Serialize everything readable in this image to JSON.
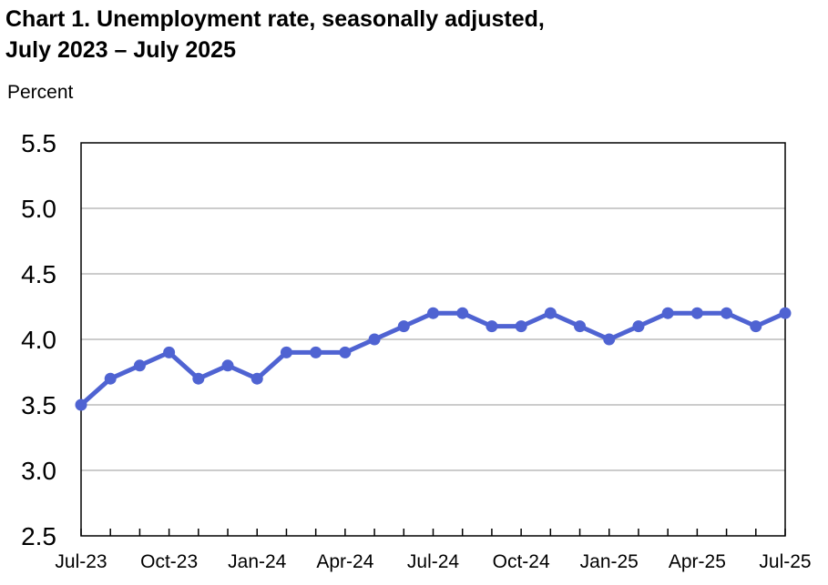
{
  "chart_data": {
    "type": "line",
    "title_line1": "Chart 1. Unemployment rate, seasonally adjusted,",
    "title_line2": "July 2023 – July 2025",
    "ylabel": "Percent",
    "xlabel": "",
    "ylim": [
      2.5,
      5.5
    ],
    "yticks": [
      "5.5",
      "5.0",
      "4.5",
      "4.0",
      "3.5",
      "3.0",
      "2.5"
    ],
    "grid": true,
    "x": [
      "Jul-23",
      "Aug-23",
      "Sep-23",
      "Oct-23",
      "Nov-23",
      "Dec-23",
      "Jan-24",
      "Feb-24",
      "Mar-24",
      "Apr-24",
      "May-24",
      "Jun-24",
      "Jul-24",
      "Aug-24",
      "Sep-24",
      "Oct-24",
      "Nov-24",
      "Dec-24",
      "Jan-25",
      "Feb-25",
      "Mar-25",
      "Apr-25",
      "May-25",
      "Jun-25",
      "Jul-25"
    ],
    "xtick_labels": [
      "Jul-23",
      "Oct-23",
      "Jan-24",
      "Apr-24",
      "Jul-24",
      "Oct-24",
      "Jan-25",
      "Apr-25",
      "Jul-25"
    ],
    "series": [
      {
        "values": [
          3.5,
          3.7,
          3.8,
          3.9,
          3.7,
          3.8,
          3.7,
          3.9,
          3.9,
          3.9,
          4.0,
          4.1,
          4.2,
          4.2,
          4.1,
          4.1,
          4.2,
          4.1,
          4.0,
          4.1,
          4.2,
          4.2,
          4.2,
          4.1,
          4.2
        ],
        "color": "#4f63d2"
      }
    ]
  }
}
